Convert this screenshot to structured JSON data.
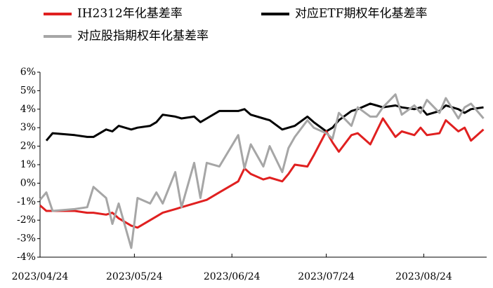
{
  "chart_data": {
    "type": "line",
    "x": [
      "2023/04/24",
      "2023/04/26",
      "2023/04/28",
      "2023/05/05",
      "2023/05/09",
      "2023/05/11",
      "2023/05/15",
      "2023/05/17",
      "2023/05/19",
      "2023/05/23",
      "2023/05/25",
      "2023/05/29",
      "2023/05/31",
      "2023/06/02",
      "2023/06/06",
      "2023/06/08",
      "2023/06/12",
      "2023/06/14",
      "2023/06/16",
      "2023/06/20",
      "2023/06/26",
      "2023/06/28",
      "2023/06/30",
      "2023/07/04",
      "2023/07/06",
      "2023/07/10",
      "2023/07/12",
      "2023/07/14",
      "2023/07/18",
      "2023/07/20",
      "2023/07/24",
      "2023/07/26",
      "2023/07/28",
      "2023/08/01",
      "2023/08/03",
      "2023/08/07",
      "2023/08/09",
      "2023/08/11",
      "2023/08/15",
      "2023/08/17",
      "2023/08/21",
      "2023/08/23",
      "2023/08/25",
      "2023/08/29",
      "2023/08/31",
      "2023/09/04",
      "2023/09/06",
      "2023/09/08",
      "2023/09/12"
    ],
    "series": [
      {
        "name": "IH2312年化基差率",
        "color": "#e02020",
        "values": [
          -1.2,
          -1.5,
          -1.5,
          -1.5,
          -1.6,
          -1.6,
          -1.7,
          -1.6,
          -1.9,
          -2.3,
          -2.4,
          -2.0,
          -1.8,
          -1.6,
          -1.4,
          -1.3,
          -1.1,
          -1.0,
          -0.9,
          -0.5,
          0.1,
          0.8,
          0.5,
          0.2,
          0.3,
          0.1,
          0.5,
          1.0,
          0.9,
          1.5,
          2.8,
          2.2,
          1.7,
          2.6,
          2.7,
          2.1,
          2.8,
          3.5,
          2.5,
          2.8,
          2.6,
          3.0,
          2.6,
          2.7,
          3.4,
          2.8,
          3.0,
          2.3,
          2.9
        ]
      },
      {
        "name": "对应ETF期权年化基差率",
        "color": "#000000",
        "values": [
          null,
          2.3,
          2.7,
          2.6,
          2.5,
          2.5,
          2.9,
          2.8,
          3.1,
          2.9,
          3.0,
          3.1,
          3.3,
          3.7,
          3.6,
          3.5,
          3.6,
          3.3,
          3.5,
          3.9,
          3.9,
          4.0,
          3.7,
          3.5,
          3.4,
          2.9,
          3.0,
          3.1,
          3.6,
          3.3,
          2.8,
          3.0,
          3.4,
          3.9,
          4.0,
          4.3,
          4.2,
          4.1,
          4.2,
          4.1,
          4.0,
          4.1,
          3.7,
          3.9,
          4.2,
          4.0,
          3.8,
          4.0,
          4.1
        ]
      },
      {
        "name": "对应股指期权年化基差率",
        "color": "#a6a6a6",
        "values": [
          -0.9,
          -0.5,
          -1.5,
          -1.4,
          -1.3,
          -0.2,
          -0.8,
          -2.2,
          -1.1,
          -3.5,
          -0.8,
          -1.1,
          -0.5,
          -1.1,
          0.6,
          -1.3,
          1.1,
          -0.8,
          1.1,
          0.9,
          2.6,
          0.8,
          2.1,
          0.9,
          2.0,
          0.6,
          1.9,
          2.5,
          3.4,
          3.0,
          2.7,
          2.4,
          3.8,
          3.1,
          4.1,
          3.6,
          3.6,
          4.1,
          4.8,
          3.7,
          4.2,
          3.8,
          4.5,
          3.8,
          4.6,
          3.5,
          4.1,
          4.3,
          3.5
        ]
      }
    ],
    "xlim": [
      "2023/04/24",
      "2023/09/13"
    ],
    "xticks": [
      "2023/04/24",
      "2023/05/24",
      "2023/06/24",
      "2023/07/24",
      "2023/08/24"
    ],
    "ylim": [
      -4,
      6
    ],
    "yticks": [
      {
        "value": 6,
        "label": "6%"
      },
      {
        "value": 5,
        "label": "5%"
      },
      {
        "value": 4,
        "label": "4%"
      },
      {
        "value": 3,
        "label": "3%"
      },
      {
        "value": 2,
        "label": "2%"
      },
      {
        "value": 1,
        "label": "1%"
      },
      {
        "value": 0,
        "label": "0%"
      },
      {
        "value": -1,
        "label": "-1%"
      },
      {
        "value": -2,
        "label": "-2%"
      },
      {
        "value": -3,
        "label": "-3%"
      },
      {
        "value": -4,
        "label": "-4%"
      }
    ]
  }
}
